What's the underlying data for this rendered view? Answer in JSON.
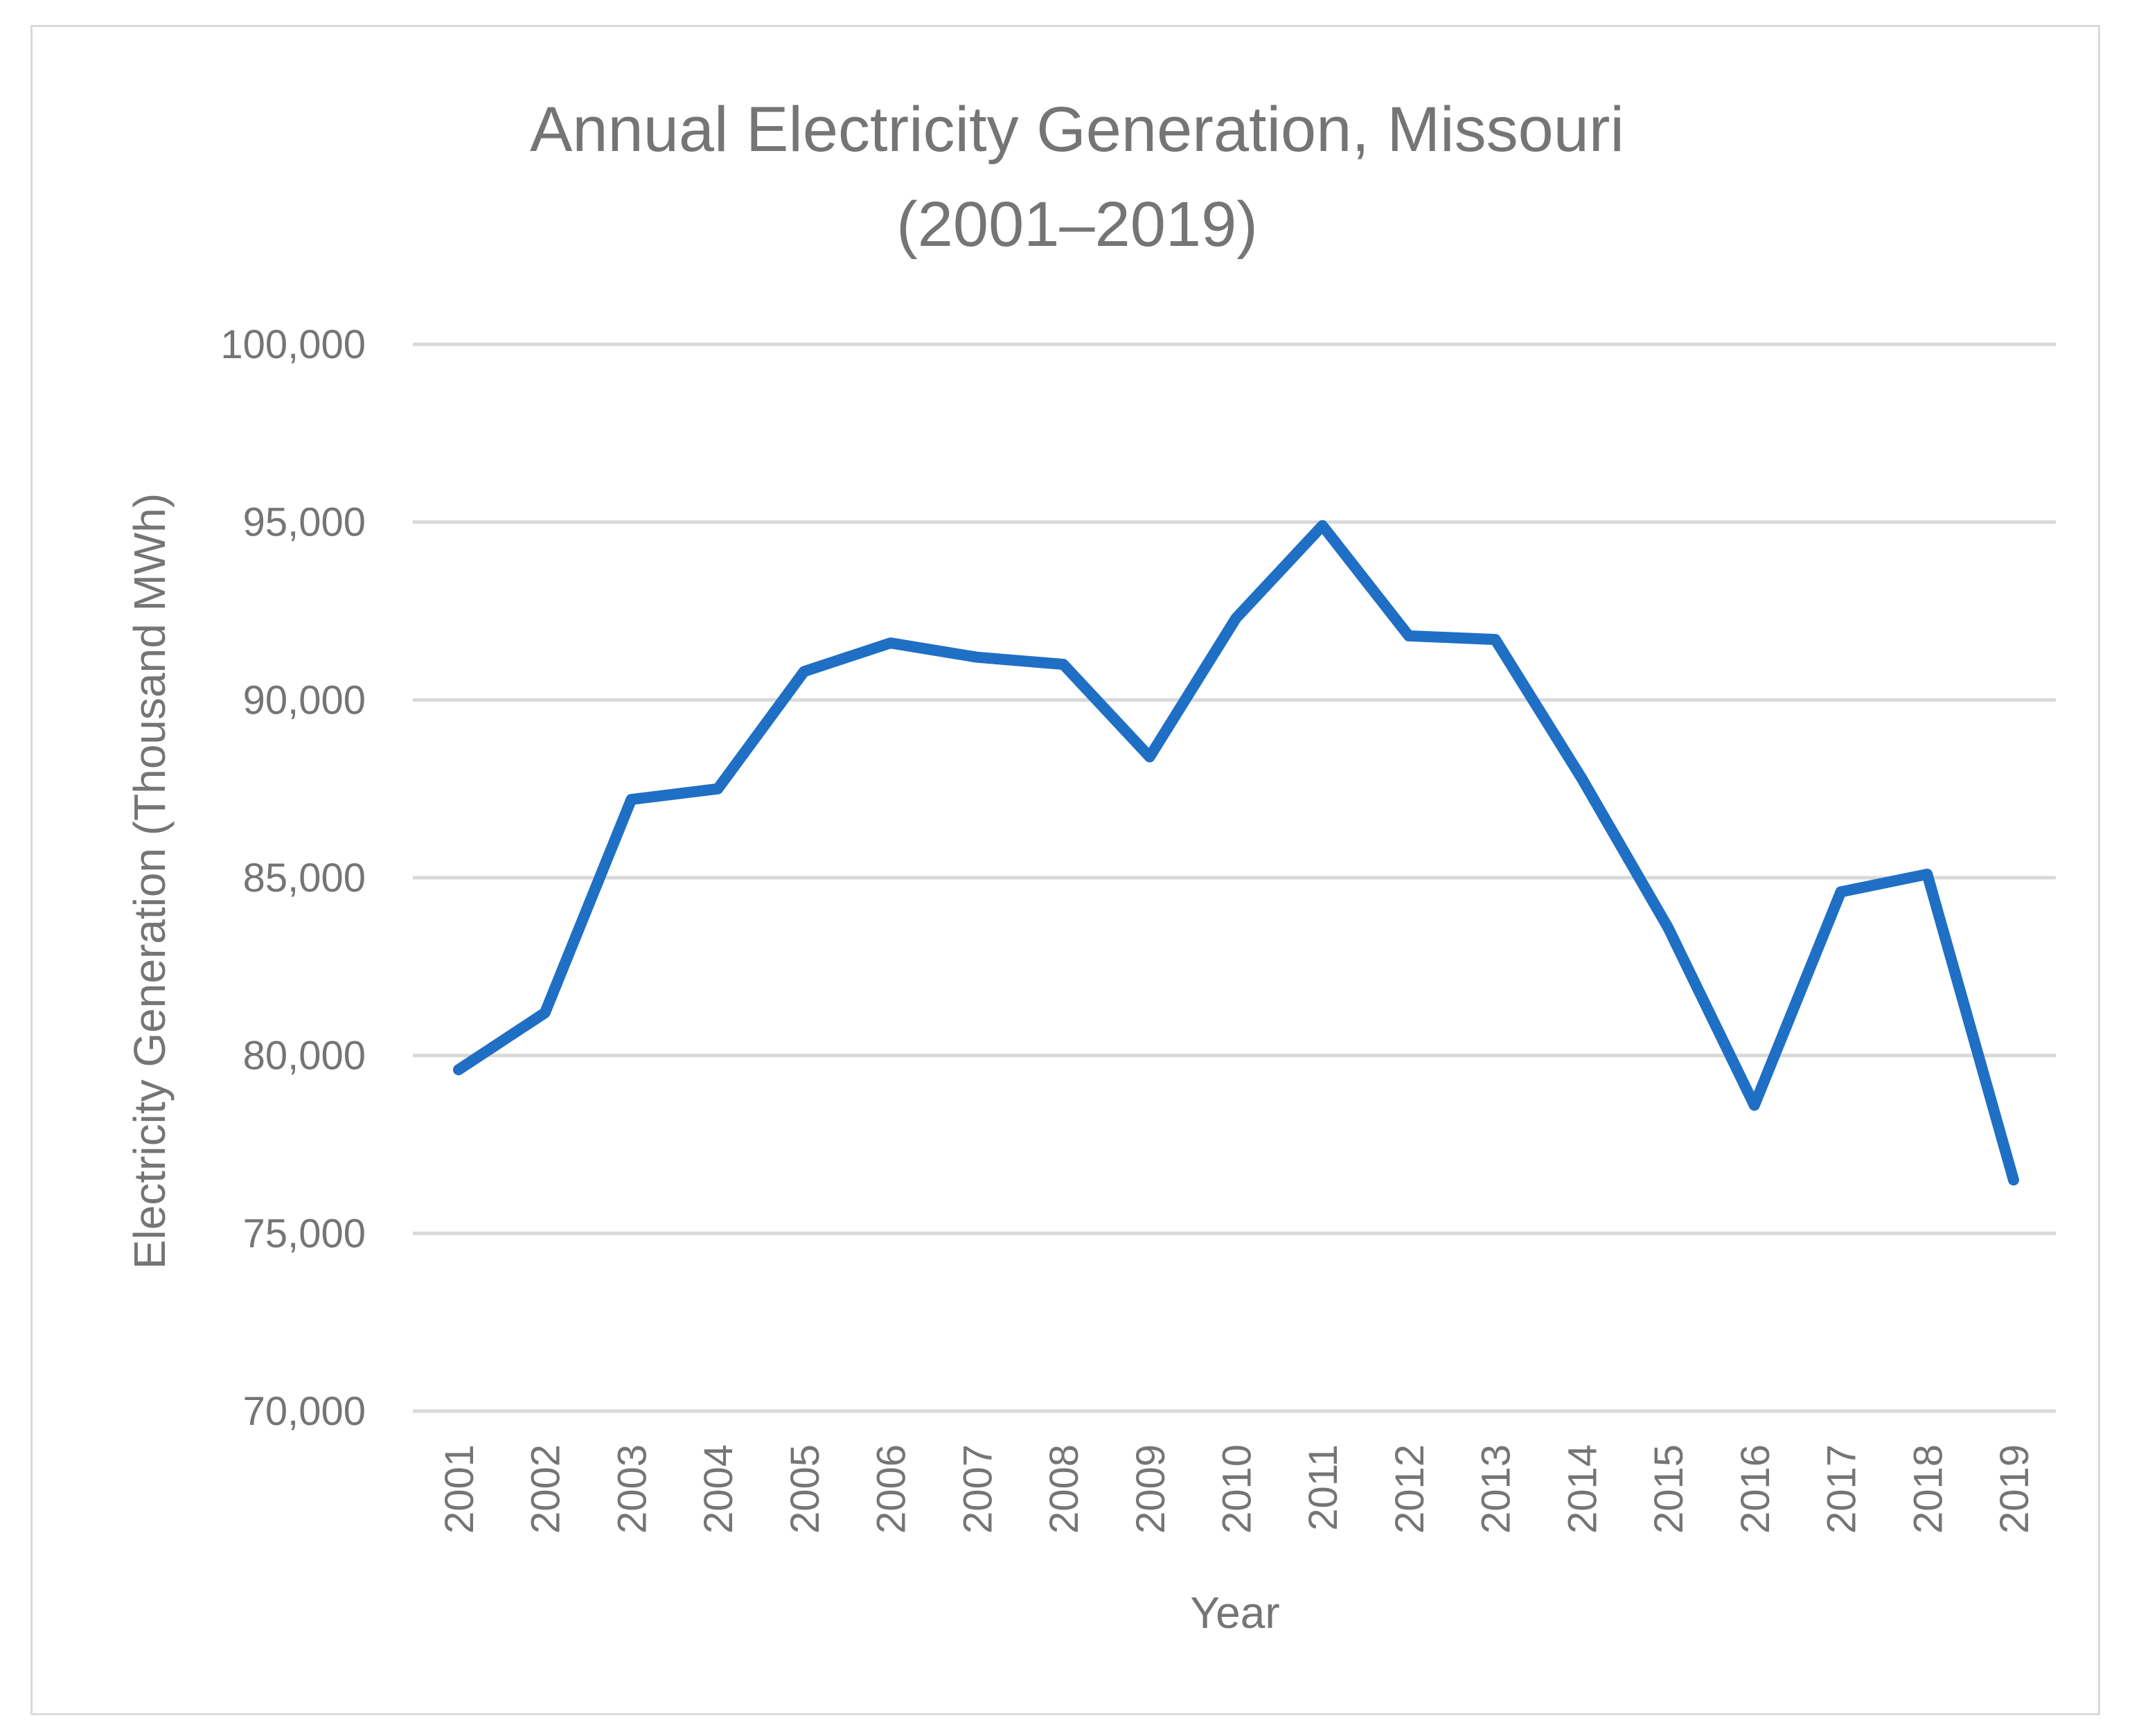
{
  "chart_data": {
    "type": "line",
    "title": "Annual Electricity Generation, Missouri",
    "subtitle": "(2001–2019)",
    "xlabel": "Year",
    "ylabel": "Electricity  Generation  (Thousand  MWh)",
    "ylim": [
      70000,
      100000
    ],
    "y_ticks": [
      70000,
      75000,
      80000,
      85000,
      90000,
      95000,
      100000
    ],
    "y_tick_labels": [
      "70,000",
      "75,000",
      "80,000",
      "85,000",
      "90,000",
      "95,000",
      "100,000"
    ],
    "grid": true,
    "legend": "none",
    "categories": [
      "2001",
      "2002",
      "2003",
      "2004",
      "2005",
      "2006",
      "2007",
      "2008",
      "2009",
      "2010",
      "2011",
      "2012",
      "2013",
      "2014",
      "2015",
      "2016",
      "2017",
      "2018",
      "2019"
    ],
    "series": [
      {
        "name": "Electricity Generation",
        "color": "#1f6fc5",
        "values": [
          79600,
          81200,
          87200,
          87500,
          90800,
          91600,
          91200,
          91000,
          88400,
          92300,
          94900,
          91800,
          91700,
          87800,
          83600,
          78600,
          84600,
          85100,
          76500
        ]
      }
    ]
  }
}
